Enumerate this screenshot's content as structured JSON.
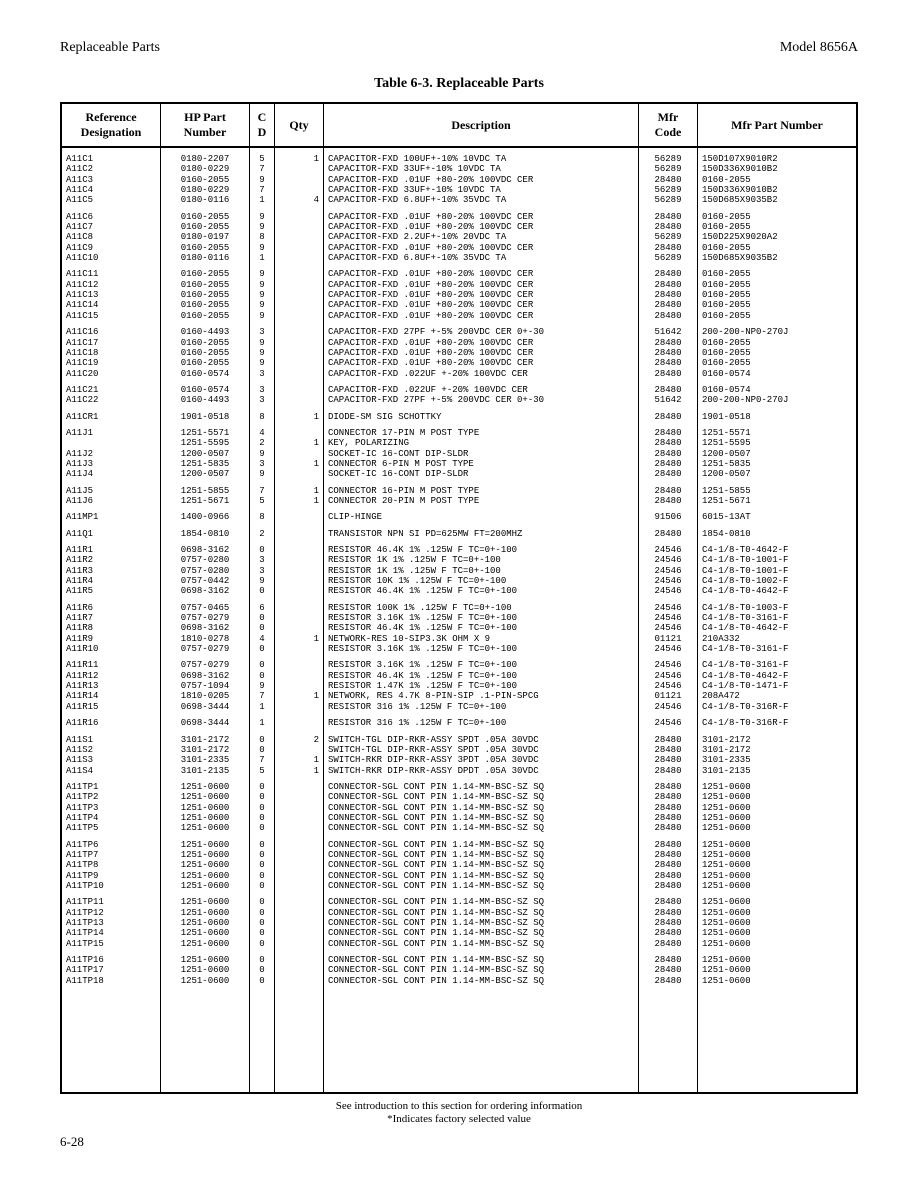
{
  "header": {
    "left": "Replaceable Parts",
    "right": "Model 8656A"
  },
  "tableTitle": "Table 6-3. Replaceable Parts",
  "columns": [
    "Reference Designation",
    "HP Part Number",
    "C D",
    "Qty",
    "Description",
    "Mfr Code",
    "Mfr Part Number"
  ],
  "footer": {
    "line1": "See introduction to this section for ordering information",
    "line2": "*Indicates factory selected value"
  },
  "pageNumber": "6-28",
  "groups": [
    [
      {
        "ref": "A11C1",
        "hp": "0180-2207",
        "cd": "5",
        "qty": "1",
        "desc": "CAPACITOR-FXD 100UF+-10% 10VDC TA",
        "mfr": "56289",
        "mpn": "150D107X9010R2"
      },
      {
        "ref": "A11C2",
        "hp": "0180-0229",
        "cd": "7",
        "qty": "",
        "desc": "CAPACITOR-FXD 33UF+-10% 10VDC TA",
        "mfr": "56289",
        "mpn": "150D336X9010B2"
      },
      {
        "ref": "A11C3",
        "hp": "0160-2055",
        "cd": "9",
        "qty": "",
        "desc": "CAPACITOR-FXD .01UF +80-20% 100VDC CER",
        "mfr": "28480",
        "mpn": "0160-2055"
      },
      {
        "ref": "A11C4",
        "hp": "0180-0229",
        "cd": "7",
        "qty": "",
        "desc": "CAPACITOR-FXD 33UF+-10% 10VDC TA",
        "mfr": "56289",
        "mpn": "150D336X9010B2"
      },
      {
        "ref": "A11C5",
        "hp": "0180-0116",
        "cd": "1",
        "qty": "4",
        "desc": "CAPACITOR-FXD 6.8UF+-10% 35VDC TA",
        "mfr": "56289",
        "mpn": "150D685X9035B2"
      }
    ],
    [
      {
        "ref": "A11C6",
        "hp": "0160-2055",
        "cd": "9",
        "qty": "",
        "desc": "CAPACITOR-FXD .01UF +80-20% 100VDC CER",
        "mfr": "28480",
        "mpn": "0160-2055"
      },
      {
        "ref": "A11C7",
        "hp": "0160-2055",
        "cd": "9",
        "qty": "",
        "desc": "CAPACITOR-FXD .01UF +80-20% 100VDC CER",
        "mfr": "28480",
        "mpn": "0160-2055"
      },
      {
        "ref": "A11C8",
        "hp": "0180-0197",
        "cd": "8",
        "qty": "",
        "desc": "CAPACITOR-FXD 2.2UF+-10% 20VDC TA",
        "mfr": "56289",
        "mpn": "150D225X9020A2"
      },
      {
        "ref": "A11C9",
        "hp": "0160-2055",
        "cd": "9",
        "qty": "",
        "desc": "CAPACITOR-FXD .01UF +80-20% 100VDC CER",
        "mfr": "28480",
        "mpn": "0160-2055"
      },
      {
        "ref": "A11C10",
        "hp": "0180-0116",
        "cd": "1",
        "qty": "",
        "desc": "CAPACITOR-FXD 6.8UF+-10% 35VDC TA",
        "mfr": "56289",
        "mpn": "150D685X9035B2"
      }
    ],
    [
      {
        "ref": "A11C11",
        "hp": "0160-2055",
        "cd": "9",
        "qty": "",
        "desc": "CAPACITOR-FXD .01UF +80-20% 100VDC CER",
        "mfr": "28480",
        "mpn": "0160-2055"
      },
      {
        "ref": "A11C12",
        "hp": "0160-2055",
        "cd": "9",
        "qty": "",
        "desc": "CAPACITOR-FXD .01UF +80-20% 100VDC CER",
        "mfr": "28480",
        "mpn": "0160-2055"
      },
      {
        "ref": "A11C13",
        "hp": "0160-2055",
        "cd": "9",
        "qty": "",
        "desc": "CAPACITOR-FXD .01UF +80-20% 100VDC CER",
        "mfr": "28480",
        "mpn": "0160-2055"
      },
      {
        "ref": "A11C14",
        "hp": "0160-2055",
        "cd": "9",
        "qty": "",
        "desc": "CAPACITOR-FXD .01UF +80-20% 100VDC CER",
        "mfr": "28480",
        "mpn": "0160-2055"
      },
      {
        "ref": "A11C15",
        "hp": "0160-2055",
        "cd": "9",
        "qty": "",
        "desc": "CAPACITOR-FXD .01UF +80-20% 100VDC CER",
        "mfr": "28480",
        "mpn": "0160-2055"
      }
    ],
    [
      {
        "ref": "A11C16",
        "hp": "0160-4493",
        "cd": "3",
        "qty": "",
        "desc": "CAPACITOR-FXD 27PF +-5% 200VDC CER 0+-30",
        "mfr": "51642",
        "mpn": "200-200-NP0-270J"
      },
      {
        "ref": "A11C17",
        "hp": "0160-2055",
        "cd": "9",
        "qty": "",
        "desc": "CAPACITOR-FXD .01UF +80-20% 100VDC CER",
        "mfr": "28480",
        "mpn": "0160-2055"
      },
      {
        "ref": "A11C18",
        "hp": "0160-2055",
        "cd": "9",
        "qty": "",
        "desc": "CAPACITOR-FXD .01UF +80-20% 100VDC CER",
        "mfr": "28480",
        "mpn": "0160-2055"
      },
      {
        "ref": "A11C19",
        "hp": "0160-2055",
        "cd": "9",
        "qty": "",
        "desc": "CAPACITOR-FXD .01UF +80-20% 100VDC CER",
        "mfr": "28480",
        "mpn": "0160-2055"
      },
      {
        "ref": "A11C20",
        "hp": "0160-0574",
        "cd": "3",
        "qty": "",
        "desc": "CAPACITOR-FXD .022UF +-20% 100VDC CER",
        "mfr": "28480",
        "mpn": "0160-0574"
      }
    ],
    [
      {
        "ref": "A11C21",
        "hp": "0160-0574",
        "cd": "3",
        "qty": "",
        "desc": "CAPACITOR-FXD .022UF +-20% 100VDC CER",
        "mfr": "28480",
        "mpn": "0160-0574"
      },
      {
        "ref": "A11C22",
        "hp": "0160-4493",
        "cd": "3",
        "qty": "",
        "desc": "CAPACITOR-FXD 27PF +-5% 200VDC CER 0+-30",
        "mfr": "51642",
        "mpn": "200-200-NP0-270J"
      }
    ],
    [
      {
        "ref": "A11CR1",
        "hp": "1901-0518",
        "cd": "8",
        "qty": "1",
        "desc": "DIODE-SM SIG SCHOTTKY",
        "mfr": "28480",
        "mpn": "1901-0518"
      }
    ],
    [
      {
        "ref": "A11J1",
        "hp": "1251-5571",
        "cd": "4",
        "qty": "",
        "desc": "CONNECTOR 17-PIN M POST TYPE",
        "mfr": "28480",
        "mpn": "1251-5571"
      },
      {
        "ref": "",
        "hp": "1251-5595",
        "cd": "2",
        "qty": "1",
        "desc": "KEY, POLARIZING",
        "mfr": "28480",
        "mpn": "1251-5595"
      },
      {
        "ref": "A11J2",
        "hp": "1200-0507",
        "cd": "9",
        "qty": "",
        "desc": "SOCKET-IC 16-CONT DIP-SLDR",
        "mfr": "28480",
        "mpn": "1200-0507"
      },
      {
        "ref": "A11J3",
        "hp": "1251-5835",
        "cd": "3",
        "qty": "1",
        "desc": "CONNECTOR 6-PIN M POST TYPE",
        "mfr": "28480",
        "mpn": "1251-5835"
      },
      {
        "ref": "A11J4",
        "hp": "1200-0507",
        "cd": "9",
        "qty": "",
        "desc": "SOCKET-IC 16-CONT DIP-SLDR",
        "mfr": "28480",
        "mpn": "1200-0507"
      }
    ],
    [
      {
        "ref": "A11J5",
        "hp": "1251-5855",
        "cd": "7",
        "qty": "1",
        "desc": "CONNECTOR 16-PIN M POST TYPE",
        "mfr": "28480",
        "mpn": "1251-5855"
      },
      {
        "ref": "A11J6",
        "hp": "1251-5671",
        "cd": "5",
        "qty": "1",
        "desc": "CONNECTOR 20-PIN M POST TYPE",
        "mfr": "28480",
        "mpn": "1251-5671"
      }
    ],
    [
      {
        "ref": "A11MP1",
        "hp": "1400-0966",
        "cd": "8",
        "qty": "",
        "desc": "CLIP-HINGE",
        "mfr": "91506",
        "mpn": "6015-13AT"
      }
    ],
    [
      {
        "ref": "A11Q1",
        "hp": "1854-0810",
        "cd": "2",
        "qty": "",
        "desc": "TRANSISTOR NPN SI PD=625MW FT=200MHZ",
        "mfr": "28480",
        "mpn": "1854-0810"
      }
    ],
    [
      {
        "ref": "A11R1",
        "hp": "0698-3162",
        "cd": "0",
        "qty": "",
        "desc": "RESISTOR 46.4K 1% .125W F TC=0+-100",
        "mfr": "24546",
        "mpn": "C4-1/8-T0-4642-F"
      },
      {
        "ref": "A11R2",
        "hp": "0757-0280",
        "cd": "3",
        "qty": "",
        "desc": "RESISTOR 1K 1% .125W F TC=0+-100",
        "mfr": "24546",
        "mpn": "C4-1/8-T0-1001-F"
      },
      {
        "ref": "A11R3",
        "hp": "0757-0280",
        "cd": "3",
        "qty": "",
        "desc": "RESISTOR 1K 1% .125W F TC=0+-100",
        "mfr": "24546",
        "mpn": "C4-1/8-T0-1001-F"
      },
      {
        "ref": "A11R4",
        "hp": "0757-0442",
        "cd": "9",
        "qty": "",
        "desc": "RESISTOR 10K 1% .125W F TC=0+-100",
        "mfr": "24546",
        "mpn": "C4-1/8-T0-1002-F"
      },
      {
        "ref": "A11R5",
        "hp": "0698-3162",
        "cd": "0",
        "qty": "",
        "desc": "RESISTOR 46.4K 1% .125W F TC=0+-100",
        "mfr": "24546",
        "mpn": "C4-1/8-T0-4642-F"
      }
    ],
    [
      {
        "ref": "A11R6",
        "hp": "0757-0465",
        "cd": "6",
        "qty": "",
        "desc": "RESISTOR 100K 1% .125W F TC=0+-100",
        "mfr": "24546",
        "mpn": "C4-1/8-T0-1003-F"
      },
      {
        "ref": "A11R7",
        "hp": "0757-0279",
        "cd": "0",
        "qty": "",
        "desc": "RESISTOR 3.16K 1% .125W F TC=0+-100",
        "mfr": "24546",
        "mpn": "C4-1/8-T0-3161-F"
      },
      {
        "ref": "A11R8",
        "hp": "0698-3162",
        "cd": "0",
        "qty": "",
        "desc": "RESISTOR 46.4K 1% .125W F TC=0+-100",
        "mfr": "24546",
        "mpn": "C4-1/8-T0-4642-F"
      },
      {
        "ref": "A11R9",
        "hp": "1810-0278",
        "cd": "4",
        "qty": "1",
        "desc": "NETWORK-RES 10-SIP3.3K OHM X 9",
        "mfr": "01121",
        "mpn": "210A332"
      },
      {
        "ref": "A11R10",
        "hp": "0757-0279",
        "cd": "0",
        "qty": "",
        "desc": "RESISTOR 3.16K 1% .125W F TC=0+-100",
        "mfr": "24546",
        "mpn": "C4-1/8-T0-3161-F"
      }
    ],
    [
      {
        "ref": "A11R11",
        "hp": "0757-0279",
        "cd": "0",
        "qty": "",
        "desc": "RESISTOR 3.16K 1% .125W F TC=0+-100",
        "mfr": "24546",
        "mpn": "C4-1/8-T0-3161-F"
      },
      {
        "ref": "A11R12",
        "hp": "0698-3162",
        "cd": "0",
        "qty": "",
        "desc": "RESISTOR 46.4K 1% .125W F TC=0+-100",
        "mfr": "24546",
        "mpn": "C4-1/8-T0-4642-F"
      },
      {
        "ref": "A11R13",
        "hp": "0757-1094",
        "cd": "9",
        "qty": "",
        "desc": "RESISTOR 1.47K 1% .125W F TC=0+-100",
        "mfr": "24546",
        "mpn": "C4-1/8-T0-1471-F"
      },
      {
        "ref": "A11R14",
        "hp": "1810-0205",
        "cd": "7",
        "qty": "1",
        "desc": "NETWORK, RES 4.7K 8-PIN-SIP .1-PIN-SPCG",
        "mfr": "01121",
        "mpn": "208A472"
      },
      {
        "ref": "A11R15",
        "hp": "0698-3444",
        "cd": "1",
        "qty": "",
        "desc": "RESISTOR 316 1% .125W F TC=0+-100",
        "mfr": "24546",
        "mpn": "C4-1/8-T0-316R-F"
      }
    ],
    [
      {
        "ref": "A11R16",
        "hp": "0698-3444",
        "cd": "1",
        "qty": "",
        "desc": "RESISTOR 316 1% .125W F TC=0+-100",
        "mfr": "24546",
        "mpn": "C4-1/8-T0-316R-F"
      }
    ],
    [
      {
        "ref": "A11S1",
        "hp": "3101-2172",
        "cd": "0",
        "qty": "2",
        "desc": "SWITCH-TGL DIP-RKR-ASSY SPDT .05A 30VDC",
        "mfr": "28480",
        "mpn": "3101-2172"
      },
      {
        "ref": "A11S2",
        "hp": "3101-2172",
        "cd": "0",
        "qty": "",
        "desc": "SWITCH-TGL DIP-RKR-ASSY SPDT .05A 30VDC",
        "mfr": "28480",
        "mpn": "3101-2172"
      },
      {
        "ref": "A11S3",
        "hp": "3101-2335",
        "cd": "7",
        "qty": "1",
        "desc": "SWITCH-RKR DIP-RKR-ASSY 3PDT .05A 30VDC",
        "mfr": "28480",
        "mpn": "3101-2335"
      },
      {
        "ref": "A11S4",
        "hp": "3101-2135",
        "cd": "5",
        "qty": "1",
        "desc": "SWITCH-RKR DIP-RKR-ASSY DPDT .05A 30VDC",
        "mfr": "28480",
        "mpn": "3101-2135"
      }
    ],
    [
      {
        "ref": "A11TP1",
        "hp": "1251-0600",
        "cd": "0",
        "qty": "",
        "desc": "CONNECTOR-SGL CONT PIN 1.14-MM-BSC-SZ SQ",
        "mfr": "28480",
        "mpn": "1251-0600"
      },
      {
        "ref": "A11TP2",
        "hp": "1251-0600",
        "cd": "0",
        "qty": "",
        "desc": "CONNECTOR-SGL CONT PIN 1.14-MM-BSC-SZ SQ",
        "mfr": "28480",
        "mpn": "1251-0600"
      },
      {
        "ref": "A11TP3",
        "hp": "1251-0600",
        "cd": "0",
        "qty": "",
        "desc": "CONNECTOR-SGL CONT PIN 1.14-MM-BSC-SZ SQ",
        "mfr": "28480",
        "mpn": "1251-0600"
      },
      {
        "ref": "A11TP4",
        "hp": "1251-0600",
        "cd": "0",
        "qty": "",
        "desc": "CONNECTOR-SGL CONT PIN 1.14-MM-BSC-SZ SQ",
        "mfr": "28480",
        "mpn": "1251-0600"
      },
      {
        "ref": "A11TP5",
        "hp": "1251-0600",
        "cd": "0",
        "qty": "",
        "desc": "CONNECTOR-SGL CONT PIN 1.14-MM-BSC-SZ SQ",
        "mfr": "28480",
        "mpn": "1251-0600"
      }
    ],
    [
      {
        "ref": "A11TP6",
        "hp": "1251-0600",
        "cd": "0",
        "qty": "",
        "desc": "CONNECTOR-SGL CONT PIN 1.14-MM-BSC-SZ SQ",
        "mfr": "28480",
        "mpn": "1251-0600"
      },
      {
        "ref": "A11TP7",
        "hp": "1251-0600",
        "cd": "0",
        "qty": "",
        "desc": "CONNECTOR-SGL CONT PIN 1.14-MM-BSC-SZ SQ",
        "mfr": "28480",
        "mpn": "1251-0600"
      },
      {
        "ref": "A11TP8",
        "hp": "1251-0600",
        "cd": "0",
        "qty": "",
        "desc": "CONNECTOR-SGL CONT PIN 1.14-MM-BSC-SZ SQ",
        "mfr": "28480",
        "mpn": "1251-0600"
      },
      {
        "ref": "A11TP9",
        "hp": "1251-0600",
        "cd": "0",
        "qty": "",
        "desc": "CONNECTOR-SGL CONT PIN 1.14-MM-BSC-SZ SQ",
        "mfr": "28480",
        "mpn": "1251-0600"
      },
      {
        "ref": "A11TP10",
        "hp": "1251-0600",
        "cd": "0",
        "qty": "",
        "desc": "CONNECTOR-SGL CONT PIN 1.14-MM-BSC-SZ SQ",
        "mfr": "28480",
        "mpn": "1251-0600"
      }
    ],
    [
      {
        "ref": "A11TP11",
        "hp": "1251-0600",
        "cd": "0",
        "qty": "",
        "desc": "CONNECTOR-SGL CONT PIN 1.14-MM-BSC-SZ SQ",
        "mfr": "28480",
        "mpn": "1251-0600"
      },
      {
        "ref": "A11TP12",
        "hp": "1251-0600",
        "cd": "0",
        "qty": "",
        "desc": "CONNECTOR-SGL CONT PIN 1.14-MM-BSC-SZ SQ",
        "mfr": "28480",
        "mpn": "1251-0600"
      },
      {
        "ref": "A11TP13",
        "hp": "1251-0600",
        "cd": "0",
        "qty": "",
        "desc": "CONNECTOR-SGL CONT PIN 1.14-MM-BSC-SZ SQ",
        "mfr": "28480",
        "mpn": "1251-0600"
      },
      {
        "ref": "A11TP14",
        "hp": "1251-0600",
        "cd": "0",
        "qty": "",
        "desc": "CONNECTOR-SGL CONT PIN 1.14-MM-BSC-SZ SQ",
        "mfr": "28480",
        "mpn": "1251-0600"
      },
      {
        "ref": "A11TP15",
        "hp": "1251-0600",
        "cd": "0",
        "qty": "",
        "desc": "CONNECTOR-SGL CONT PIN 1.14-MM-BSC-SZ SQ",
        "mfr": "28480",
        "mpn": "1251-0600"
      }
    ],
    [
      {
        "ref": "A11TP16",
        "hp": "1251-0600",
        "cd": "0",
        "qty": "",
        "desc": "CONNECTOR-SGL CONT PIN 1.14-MM-BSC-SZ SQ",
        "mfr": "28480",
        "mpn": "1251-0600"
      },
      {
        "ref": "A11TP17",
        "hp": "1251-0600",
        "cd": "0",
        "qty": "",
        "desc": "CONNECTOR-SGL CONT PIN 1.14-MM-BSC-SZ SQ",
        "mfr": "28480",
        "mpn": "1251-0600"
      },
      {
        "ref": "A11TP18",
        "hp": "1251-0600",
        "cd": "0",
        "qty": "",
        "desc": "CONNECTOR-SGL CONT PIN 1.14-MM-BSC-SZ SQ",
        "mfr": "28480",
        "mpn": "1251-0600"
      }
    ]
  ]
}
